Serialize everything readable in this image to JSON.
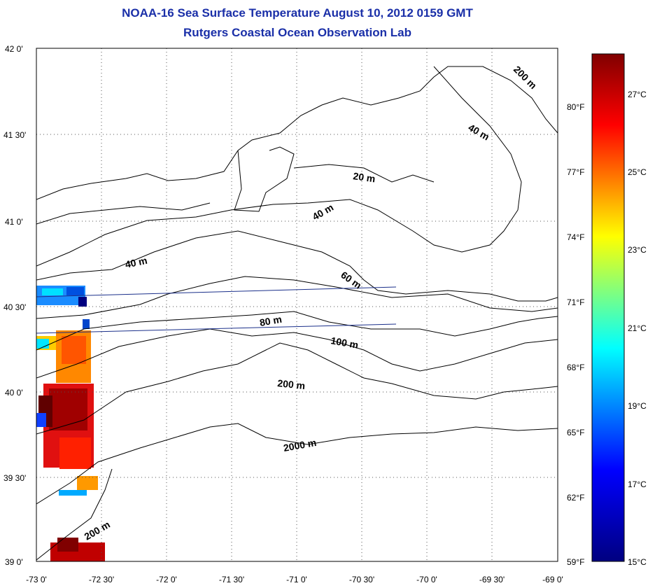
{
  "title_line1": "NOAA-16 Sea Surface Temperature August 10, 2012 0159 GMT",
  "title_line2": "Rutgers Coastal Ocean Observation Lab",
  "map": {
    "lon_range": [
      -73.0,
      -69.0
    ],
    "lat_range": [
      39.0,
      42.0
    ],
    "grid": "dotted",
    "lat_labels": [
      "42 0'",
      "41 30'",
      "41 0'",
      "40 30'",
      "40 0'",
      "39 30'",
      "39 0'"
    ],
    "lon_labels": [
      "-73 0'",
      "-72 30'",
      "-72 0'",
      "-71 30'",
      "-71 0'",
      "-70 30'",
      "-70 0'",
      "-69 30'",
      "-69 0'"
    ],
    "contour_labels": [
      "200 m",
      "40 m",
      "20 m",
      "40 m",
      "40 m",
      "60 m",
      "80 m",
      "100 m",
      "200 m",
      "2000 m",
      "200 m"
    ]
  },
  "colorbar": {
    "colors": [
      "#000080",
      "#0000ff",
      "#00ffff",
      "#ffff00",
      "#ff0000",
      "#800000"
    ],
    "fahrenheit_labels": [
      "80°F",
      "77°F",
      "74°F",
      "71°F",
      "68°F",
      "65°F",
      "62°F",
      "59°F"
    ],
    "celsius_labels": [
      "27°C",
      "25°C",
      "23°C",
      "21°C",
      "19°C",
      "17°C",
      "15°C"
    ]
  }
}
